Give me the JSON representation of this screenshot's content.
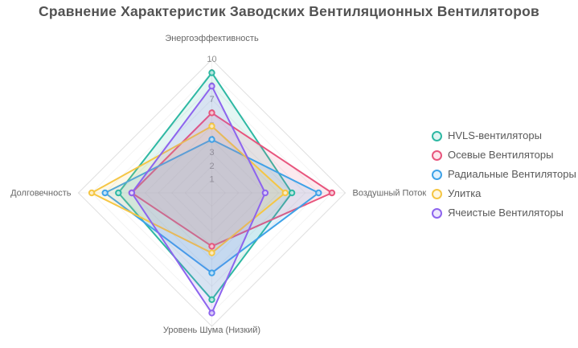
{
  "title": "Сравнение Характеристик Заводских Вентиляционных Вентиляторов",
  "chart_data": {
    "type": "radar",
    "axes": [
      "Энергоэффективность",
      "Воздушный Поток",
      "Уровень Шума (Низкий)",
      "Долговечность"
    ],
    "scale": {
      "min": 0,
      "max": 10,
      "ticks": [
        1,
        2,
        3,
        4,
        5,
        6,
        7,
        8,
        9,
        10
      ]
    },
    "grid": true,
    "legend_position": "right",
    "series": [
      {
        "name": "HVLS-вентиляторы",
        "color": "#2eb8a3",
        "values": [
          9,
          6,
          8,
          7
        ]
      },
      {
        "name": "Осевые Вентиляторы",
        "color": "#e8557d",
        "values": [
          6,
          9,
          4,
          6
        ]
      },
      {
        "name": "Радиальные Вентиляторы",
        "color": "#3fa2e8",
        "values": [
          4,
          8,
          6,
          8
        ]
      },
      {
        "name": "Улитка",
        "color": "#f5c644",
        "values": [
          5,
          5.5,
          4.5,
          9
        ]
      },
      {
        "name": "Ячеистые Вентиляторы",
        "color": "#8d64ee",
        "values": [
          8,
          4,
          9,
          6
        ]
      }
    ]
  }
}
